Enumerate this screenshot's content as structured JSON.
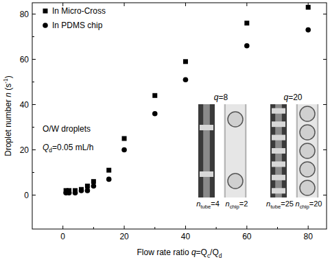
{
  "chart_data": {
    "type": "scatter",
    "x_label": [
      {
        "text": "Flow rate ratio "
      },
      {
        "text": "q",
        "italic": true
      },
      {
        "text": "=Q"
      },
      {
        "text": "c",
        "sub": true
      },
      {
        "text": "/Q"
      },
      {
        "text": "d",
        "sub": true
      }
    ],
    "y_label": [
      {
        "text": "Droplet number "
      },
      {
        "text": "n",
        "italic": true
      },
      {
        "text": " (s"
      },
      {
        "text": "-1",
        "sup": true
      },
      {
        "text": ")"
      }
    ],
    "xlim": [
      -10,
      86
    ],
    "ylim": [
      -15,
      85
    ],
    "xticks": [
      0,
      20,
      40,
      60,
      80
    ],
    "yticks": [
      0,
      20,
      40,
      60,
      80
    ],
    "grid": false,
    "legend": "top-left",
    "series": [
      {
        "name": "In Micro-Cross",
        "color": "#000000",
        "marker": "square",
        "x": [
          1,
          2,
          4,
          6,
          8,
          10,
          15,
          20,
          30,
          40,
          60,
          80
        ],
        "values": [
          2,
          2,
          2,
          2.5,
          4,
          6,
          11,
          25,
          44,
          59,
          76,
          83
        ]
      },
      {
        "name": "In PDMS chip",
        "color": "#000000",
        "marker": "circle",
        "x": [
          1,
          2,
          4,
          6,
          8,
          10,
          15,
          20,
          30,
          40,
          60,
          80
        ],
        "values": [
          1,
          1,
          1,
          2,
          2,
          4,
          7,
          20,
          36,
          51,
          66,
          73
        ]
      }
    ],
    "annotations": [
      {
        "text": [
          {
            "text": "O/W droplets"
          }
        ]
      },
      {
        "text": [
          {
            "text": "Q",
            "italic": true
          },
          {
            "text": "d",
            "sub": true
          },
          {
            "text": "=0.05 mL/h"
          }
        ]
      }
    ],
    "insets": [
      {
        "label": [
          {
            "text": "q",
            "italic": true
          },
          {
            "text": "=8"
          }
        ],
        "panels": [
          {
            "kind": "tube",
            "label": [
              {
                "text": "n",
                "italic": true
              },
              {
                "text": "tube",
                "sub": true
              },
              {
                "text": "=4"
              }
            ]
          },
          {
            "kind": "chip",
            "label": [
              {
                "text": "n",
                "italic": true
              },
              {
                "text": "chip",
                "sub": true
              },
              {
                "text": "=2"
              }
            ]
          }
        ]
      },
      {
        "label": [
          {
            "text": "q",
            "italic": true
          },
          {
            "text": "=20"
          }
        ],
        "panels": [
          {
            "kind": "tube",
            "label": [
              {
                "text": "n",
                "italic": true
              },
              {
                "text": "tube",
                "sub": true
              },
              {
                "text": "=25"
              }
            ]
          },
          {
            "kind": "chip",
            "label": [
              {
                "text": "n",
                "italic": true
              },
              {
                "text": "chip",
                "sub": true
              },
              {
                "text": "=20"
              }
            ]
          }
        ]
      }
    ]
  }
}
